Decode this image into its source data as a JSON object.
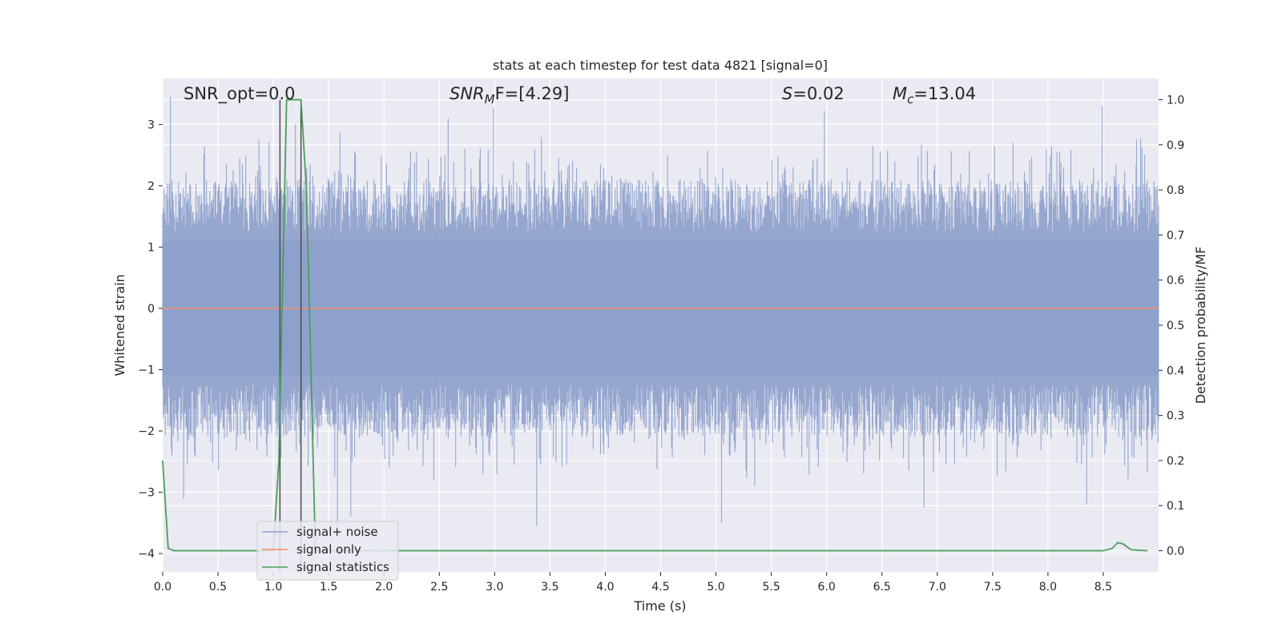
{
  "chart_data": {
    "type": "line",
    "title": "stats at each timestep for test data 4821 [signal=0]",
    "xlabel": "Time (s)",
    "ylabel_left": "Whitened strain",
    "ylabel_right": "Detection probability/MF",
    "xlim": [
      0.0,
      9.0
    ],
    "ylim_left": [
      -4.3,
      3.75
    ],
    "ylim_right": [
      -0.047,
      1.047
    ],
    "x_ticks": [
      0.0,
      0.5,
      1.0,
      1.5,
      2.0,
      2.5,
      3.0,
      3.5,
      4.0,
      4.5,
      5.0,
      5.5,
      6.0,
      6.5,
      7.0,
      7.5,
      8.0,
      8.5
    ],
    "x_tick_labels": [
      "0.0",
      "0.5",
      "1.0",
      "1.5",
      "2.0",
      "2.5",
      "3.0",
      "3.5",
      "4.0",
      "4.5",
      "5.0",
      "5.5",
      "6.0",
      "6.5",
      "7.0",
      "7.5",
      "8.0",
      "8.5"
    ],
    "y_left_ticks": [
      -4,
      -3,
      -2,
      -1,
      0,
      1,
      2,
      3
    ],
    "y_left_tick_labels": [
      "−4",
      "−3",
      "−2",
      "−1",
      "0",
      "1",
      "2",
      "3"
    ],
    "y_right_ticks": [
      0.0,
      0.1,
      0.2,
      0.3,
      0.4,
      0.5,
      0.6,
      0.7,
      0.8,
      0.9,
      1.0
    ],
    "y_right_tick_labels": [
      "0.0",
      "0.1",
      "0.2",
      "0.3",
      "0.4",
      "0.5",
      "0.6",
      "0.7",
      "0.8",
      "0.9",
      "1.0"
    ],
    "grid": true,
    "legend_position": "lower-left",
    "annotations": {
      "snr_opt": "SNR_opt=0.0",
      "snr_mf_label": "SNR",
      "snr_mf_sub": "M",
      "snr_mf_rest": "F=[4.29]",
      "s_italic": "S",
      "s_value": "=0.02",
      "mc_label": "M",
      "mc_sub": "c",
      "mc_value": "=13.04"
    },
    "vertical_lines_x": [
      1.06,
      1.25
    ],
    "series": [
      {
        "name": "signal+ noise",
        "color": "#8da0cb",
        "kind": "noise",
        "description_values": "whitened strain noise spanning approx -3.5 to 3.5",
        "peaks_high": [
          [
            0.07,
            3.45
          ],
          [
            2.99,
            3.28
          ],
          [
            2.58,
            3.1
          ],
          [
            5.98,
            3.22
          ],
          [
            8.49,
            3.3
          ],
          [
            8.8,
            2.75
          ],
          [
            1.2,
            3.0
          ]
        ],
        "peaks_low": [
          [
            3.38,
            -3.55
          ],
          [
            5.05,
            -3.5
          ],
          [
            1.58,
            -3.6
          ],
          [
            1.7,
            -3.4
          ],
          [
            6.88,
            -3.25
          ],
          [
            8.35,
            -3.2
          ],
          [
            5.35,
            -2.9
          ],
          [
            0.19,
            -3.1
          ],
          [
            2.45,
            -2.8
          ]
        ]
      },
      {
        "name": "signal only",
        "color": "#fc8d62",
        "x": [
          0.0,
          9.0
        ],
        "y": [
          0.0,
          0.0
        ]
      },
      {
        "name": "signal statistics",
        "color": "#4c9d5a",
        "axis": "right",
        "x": [
          0.0,
          0.05,
          0.1,
          1.0,
          1.05,
          1.12,
          1.25,
          1.3,
          1.38,
          1.45,
          8.5,
          8.58,
          8.63,
          8.68,
          8.75,
          8.9
        ],
        "y": [
          0.2,
          0.005,
          0.0,
          0.0,
          0.2,
          1.0,
          1.0,
          0.8,
          0.0,
          0.0,
          0.0,
          0.005,
          0.018,
          0.015,
          0.002,
          0.0
        ]
      }
    ]
  }
}
